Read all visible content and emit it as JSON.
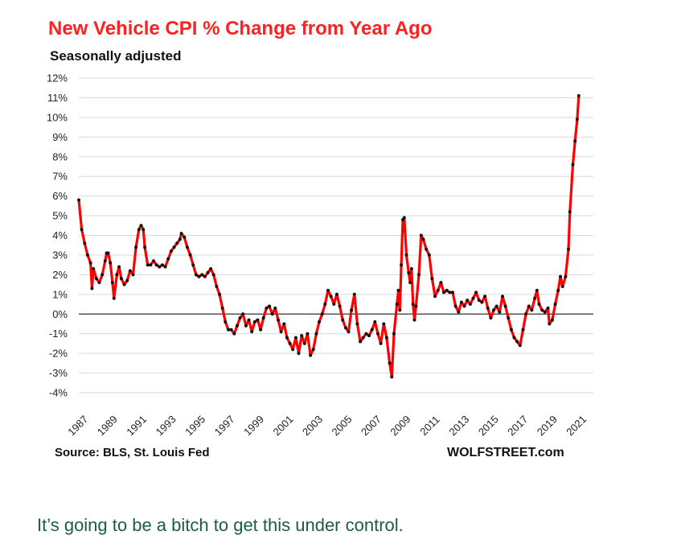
{
  "chart_data": {
    "type": "line",
    "title": "New Vehicle CPI % Change from Year Ago",
    "subtitle": "Seasonally adjusted",
    "source": "Source: BLS, St. Louis Fed",
    "credit": "WOLFSTREET.com",
    "xlabel": "",
    "ylabel": "",
    "xlim": [
      1987,
      2022.1
    ],
    "ylim": [
      -4,
      12
    ],
    "y_ticks": [
      {
        "value": 12,
        "label": "12%"
      },
      {
        "value": 11,
        "label": "11%"
      },
      {
        "value": 10,
        "label": "10%"
      },
      {
        "value": 9,
        "label": "9%"
      },
      {
        "value": 8,
        "label": "8%"
      },
      {
        "value": 7,
        "label": "7%"
      },
      {
        "value": 6,
        "label": "6%"
      },
      {
        "value": 5,
        "label": "5%"
      },
      {
        "value": 4,
        "label": "4%"
      },
      {
        "value": 3,
        "label": "3%"
      },
      {
        "value": 2,
        "label": "2%"
      },
      {
        "value": 1,
        "label": "1%"
      },
      {
        "value": 0,
        "label": "0%"
      },
      {
        "value": -1,
        "label": "-1%"
      },
      {
        "value": -2,
        "label": "-2%"
      },
      {
        "value": -3,
        "label": "-3%"
      },
      {
        "value": -4,
        "label": "-4%"
      }
    ],
    "x_ticks": [
      {
        "value": 1987,
        "label": "1987"
      },
      {
        "value": 1989,
        "label": "1989"
      },
      {
        "value": 1991,
        "label": "1991"
      },
      {
        "value": 1993,
        "label": "1993"
      },
      {
        "value": 1995,
        "label": "1995"
      },
      {
        "value": 1997,
        "label": "1997"
      },
      {
        "value": 1999,
        "label": "1999"
      },
      {
        "value": 2001,
        "label": "2001"
      },
      {
        "value": 2003,
        "label": "2003"
      },
      {
        "value": 2005,
        "label": "2005"
      },
      {
        "value": 2007,
        "label": "2007"
      },
      {
        "value": 2009,
        "label": "2009"
      },
      {
        "value": 2011,
        "label": "2011"
      },
      {
        "value": 2013,
        "label": "2013"
      },
      {
        "value": 2015,
        "label": "2015"
      },
      {
        "value": 2017,
        "label": "2017"
      },
      {
        "value": 2019,
        "label": "2019"
      },
      {
        "value": 2021,
        "label": "2021"
      }
    ],
    "grid": true,
    "legend": "none",
    "line_color": "#ff0000",
    "marker_color": "#111111",
    "series": [
      {
        "values": [
          [
            1987.0,
            5.8
          ],
          [
            1987.2,
            4.3
          ],
          [
            1987.4,
            3.6
          ],
          [
            1987.6,
            3.0
          ],
          [
            1987.8,
            2.6
          ],
          [
            1987.9,
            1.3
          ],
          [
            1988.0,
            2.3
          ],
          [
            1988.2,
            1.8
          ],
          [
            1988.4,
            1.6
          ],
          [
            1988.6,
            2.0
          ],
          [
            1988.8,
            2.7
          ],
          [
            1988.9,
            3.1
          ],
          [
            1989.0,
            3.1
          ],
          [
            1989.15,
            2.6
          ],
          [
            1989.3,
            1.6
          ],
          [
            1989.4,
            0.8
          ],
          [
            1989.6,
            2.0
          ],
          [
            1989.75,
            2.4
          ],
          [
            1989.9,
            1.8
          ],
          [
            1990.1,
            1.5
          ],
          [
            1990.3,
            1.7
          ],
          [
            1990.5,
            2.2
          ],
          [
            1990.7,
            2.0
          ],
          [
            1990.9,
            3.4
          ],
          [
            1991.1,
            4.3
          ],
          [
            1991.25,
            4.5
          ],
          [
            1991.4,
            4.3
          ],
          [
            1991.5,
            3.4
          ],
          [
            1991.7,
            2.5
          ],
          [
            1991.9,
            2.5
          ],
          [
            1992.1,
            2.7
          ],
          [
            1992.3,
            2.5
          ],
          [
            1992.5,
            2.4
          ],
          [
            1992.7,
            2.5
          ],
          [
            1992.9,
            2.4
          ],
          [
            1993.1,
            2.8
          ],
          [
            1993.3,
            3.2
          ],
          [
            1993.5,
            3.4
          ],
          [
            1993.7,
            3.6
          ],
          [
            1993.9,
            3.8
          ],
          [
            1994.0,
            4.1
          ],
          [
            1994.2,
            3.9
          ],
          [
            1994.4,
            3.4
          ],
          [
            1994.6,
            3.0
          ],
          [
            1994.8,
            2.5
          ],
          [
            1995.0,
            2.0
          ],
          [
            1995.2,
            1.9
          ],
          [
            1995.4,
            2.0
          ],
          [
            1995.6,
            1.9
          ],
          [
            1995.8,
            2.1
          ],
          [
            1996.0,
            2.3
          ],
          [
            1996.2,
            2.0
          ],
          [
            1996.4,
            1.4
          ],
          [
            1996.6,
            1.0
          ],
          [
            1996.8,
            0.3
          ],
          [
            1997.0,
            -0.4
          ],
          [
            1997.2,
            -0.8
          ],
          [
            1997.4,
            -0.8
          ],
          [
            1997.6,
            -1.0
          ],
          [
            1997.8,
            -0.6
          ],
          [
            1998.0,
            -0.2
          ],
          [
            1998.2,
            0.0
          ],
          [
            1998.4,
            -0.6
          ],
          [
            1998.6,
            -0.3
          ],
          [
            1998.8,
            -0.9
          ],
          [
            1999.0,
            -0.4
          ],
          [
            1999.2,
            -0.3
          ],
          [
            1999.4,
            -0.8
          ],
          [
            1999.6,
            -0.2
          ],
          [
            1999.8,
            0.3
          ],
          [
            2000.0,
            0.4
          ],
          [
            2000.2,
            0.0
          ],
          [
            2000.4,
            0.3
          ],
          [
            2000.6,
            -0.3
          ],
          [
            2000.8,
            -0.9
          ],
          [
            2001.0,
            -0.5
          ],
          [
            2001.2,
            -1.2
          ],
          [
            2001.4,
            -1.5
          ],
          [
            2001.6,
            -1.8
          ],
          [
            2001.8,
            -1.2
          ],
          [
            2002.0,
            -2.0
          ],
          [
            2002.2,
            -1.1
          ],
          [
            2002.4,
            -1.5
          ],
          [
            2002.6,
            -1.0
          ],
          [
            2002.8,
            -2.1
          ],
          [
            2003.0,
            -1.8
          ],
          [
            2003.2,
            -1.0
          ],
          [
            2003.4,
            -0.4
          ],
          [
            2003.6,
            0.0
          ],
          [
            2003.8,
            0.5
          ],
          [
            2004.0,
            1.2
          ],
          [
            2004.2,
            0.9
          ],
          [
            2004.4,
            0.5
          ],
          [
            2004.6,
            1.0
          ],
          [
            2004.8,
            0.4
          ],
          [
            2005.0,
            -0.3
          ],
          [
            2005.2,
            -0.7
          ],
          [
            2005.4,
            -0.9
          ],
          [
            2005.6,
            0.2
          ],
          [
            2005.8,
            1.0
          ],
          [
            2006.0,
            -0.5
          ],
          [
            2006.2,
            -1.4
          ],
          [
            2006.4,
            -1.2
          ],
          [
            2006.6,
            -1.0
          ],
          [
            2006.8,
            -1.1
          ],
          [
            2007.0,
            -0.8
          ],
          [
            2007.2,
            -0.4
          ],
          [
            2007.4,
            -1.0
          ],
          [
            2007.6,
            -1.5
          ],
          [
            2007.8,
            -0.5
          ],
          [
            2008.0,
            -1.2
          ],
          [
            2008.2,
            -2.5
          ],
          [
            2008.35,
            -3.2
          ],
          [
            2008.5,
            -1.0
          ],
          [
            2008.7,
            0.5
          ],
          [
            2008.8,
            1.2
          ],
          [
            2008.9,
            0.2
          ],
          [
            2009.0,
            2.5
          ],
          [
            2009.1,
            4.8
          ],
          [
            2009.2,
            4.9
          ],
          [
            2009.35,
            3.0
          ],
          [
            2009.5,
            2.1
          ],
          [
            2009.6,
            1.6
          ],
          [
            2009.7,
            2.3
          ],
          [
            2009.8,
            0.5
          ],
          [
            2009.9,
            -0.3
          ],
          [
            2010.0,
            0.4
          ],
          [
            2010.2,
            2.0
          ],
          [
            2010.35,
            4.0
          ],
          [
            2010.5,
            3.8
          ],
          [
            2010.7,
            3.3
          ],
          [
            2010.9,
            3.0
          ],
          [
            2011.1,
            1.8
          ],
          [
            2011.3,
            0.9
          ],
          [
            2011.5,
            1.2
          ],
          [
            2011.7,
            1.6
          ],
          [
            2011.9,
            1.1
          ],
          [
            2012.1,
            1.2
          ],
          [
            2012.3,
            1.1
          ],
          [
            2012.5,
            1.1
          ],
          [
            2012.7,
            0.4
          ],
          [
            2012.9,
            0.1
          ],
          [
            2013.1,
            0.6
          ],
          [
            2013.3,
            0.4
          ],
          [
            2013.5,
            0.7
          ],
          [
            2013.7,
            0.5
          ],
          [
            2013.9,
            0.8
          ],
          [
            2014.1,
            1.1
          ],
          [
            2014.3,
            0.7
          ],
          [
            2014.5,
            0.6
          ],
          [
            2014.7,
            0.9
          ],
          [
            2014.9,
            0.3
          ],
          [
            2015.1,
            -0.2
          ],
          [
            2015.3,
            0.2
          ],
          [
            2015.5,
            0.4
          ],
          [
            2015.7,
            0.1
          ],
          [
            2015.9,
            0.9
          ],
          [
            2016.1,
            0.4
          ],
          [
            2016.3,
            -0.2
          ],
          [
            2016.5,
            -0.8
          ],
          [
            2016.7,
            -1.2
          ],
          [
            2016.9,
            -1.4
          ],
          [
            2017.1,
            -1.6
          ],
          [
            2017.3,
            -0.8
          ],
          [
            2017.5,
            0.0
          ],
          [
            2017.7,
            0.4
          ],
          [
            2017.9,
            0.2
          ],
          [
            2018.1,
            0.8
          ],
          [
            2018.25,
            1.2
          ],
          [
            2018.4,
            0.5
          ],
          [
            2018.6,
            0.2
          ],
          [
            2018.8,
            0.1
          ],
          [
            2019.0,
            0.3
          ],
          [
            2019.1,
            -0.5
          ],
          [
            2019.3,
            -0.3
          ],
          [
            2019.5,
            0.5
          ],
          [
            2019.7,
            1.2
          ],
          [
            2019.85,
            1.9
          ],
          [
            2020.0,
            1.4
          ],
          [
            2020.2,
            1.9
          ],
          [
            2020.4,
            3.3
          ],
          [
            2020.5,
            5.2
          ],
          [
            2020.7,
            7.6
          ],
          [
            2020.85,
            8.8
          ],
          [
            2021.0,
            9.9
          ],
          [
            2021.1,
            11.1
          ]
        ]
      }
    ]
  },
  "caption": "It’s going to be a bitch to get this under control."
}
